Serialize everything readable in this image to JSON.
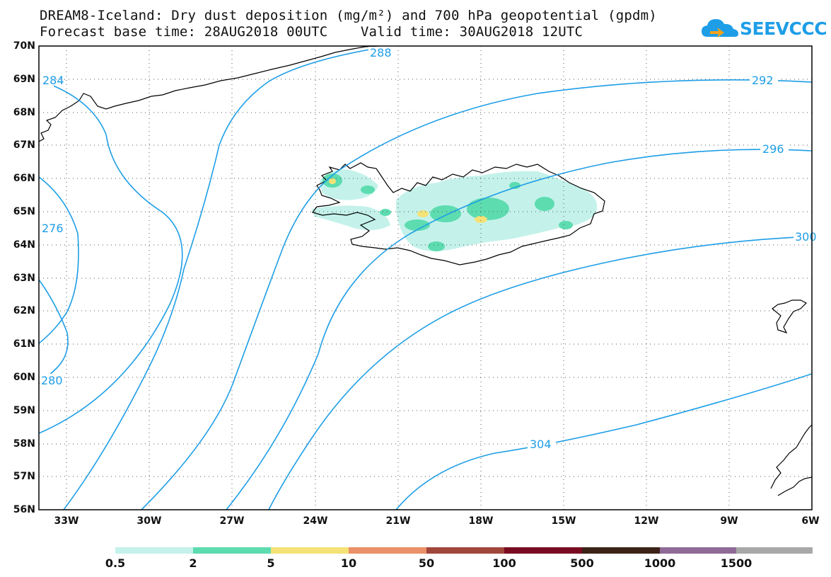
{
  "title": {
    "line1": "DREAM8-Iceland: Dry dust deposition (mg/m²) and 700 hPa geopotential (gpdm)",
    "line2": "Forecast base time: 28AUG2018 00UTC    Valid time: 30AUG2018 12UTC"
  },
  "logo": {
    "text": "SEEVCCC",
    "icon": "cloud-icon",
    "color": "#1e9ee6"
  },
  "map": {
    "lon_range": [
      -34,
      -6
    ],
    "lat_range": [
      56,
      70
    ],
    "lat_ticks": [
      "70N",
      "69N",
      "68N",
      "67N",
      "66N",
      "65N",
      "64N",
      "63N",
      "62N",
      "61N",
      "60N",
      "59N",
      "58N",
      "57N",
      "56N"
    ],
    "lon_ticks": [
      "33W",
      "30W",
      "27W",
      "24W",
      "21W",
      "18W",
      "15W",
      "12W",
      "9W",
      "6W"
    ],
    "grid": "dotted",
    "contour_color": "#1e9ee6",
    "contour_labels": [
      "284",
      "288",
      "292",
      "296",
      "300",
      "304",
      "276",
      "280"
    ],
    "coastline_color": "#000000"
  },
  "colorbar": {
    "labels": [
      "0.5",
      "2",
      "5",
      "10",
      "50",
      "100",
      "500",
      "1000",
      "1500"
    ],
    "colors": [
      "#c4f2ea",
      "#5ddcb0",
      "#f4e277",
      "#eb9068",
      "#a0463c",
      "#7a0c22",
      "#3c2318",
      "#8f6a97",
      "#a8a8a8"
    ]
  }
}
